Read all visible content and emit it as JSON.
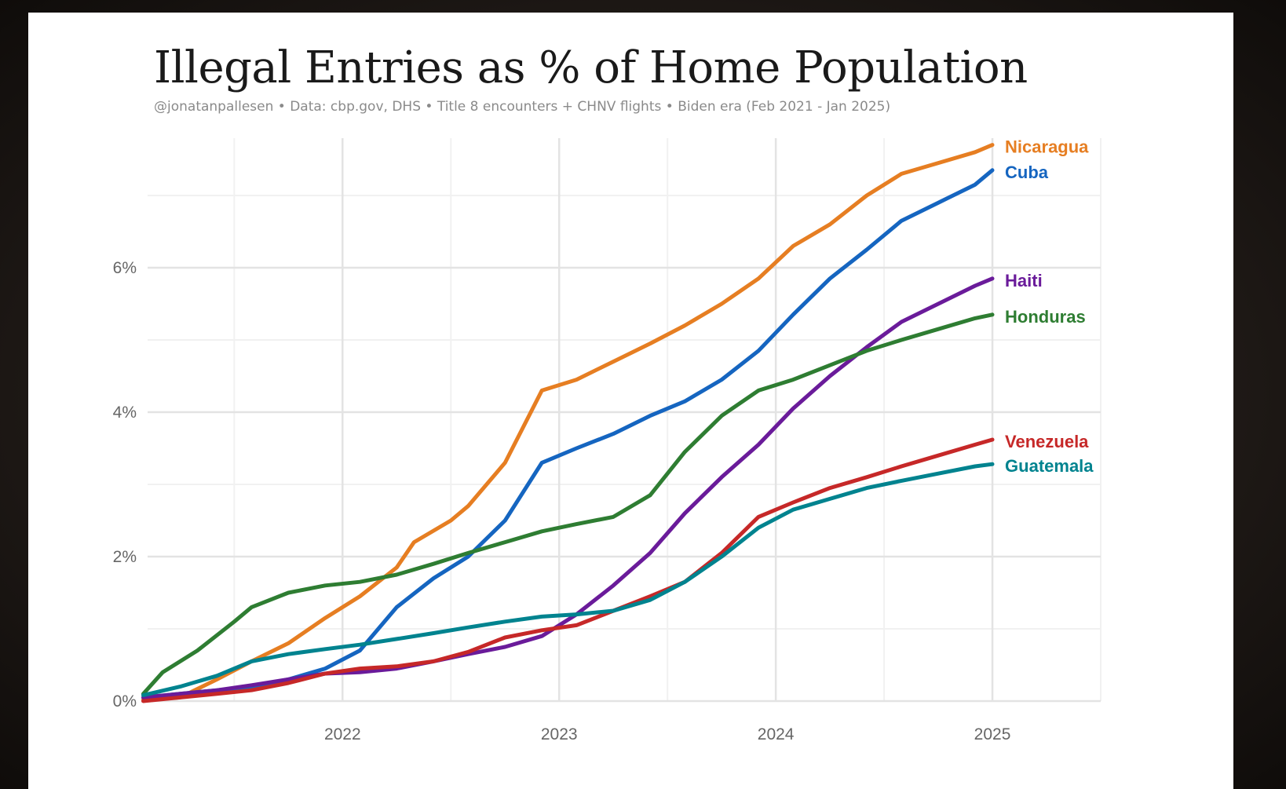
{
  "title": "Illegal Entries as % of Home Population",
  "subtitle": "@jonatanpallesen  •  Data: cbp.gov, DHS  •  Title 8 encounters + CHNV flights  •  Biden era (Feb 2021 - Jan 2025)",
  "chart_data": {
    "type": "line",
    "title": "Illegal Entries as % of Home Population",
    "xlabel": "",
    "ylabel": "",
    "xlim": [
      2021.1,
      2025.5
    ],
    "ylim": [
      0,
      7.8
    ],
    "x_ticks": [
      2022,
      2023,
      2024,
      2025
    ],
    "x_tick_labels": [
      "2022",
      "2023",
      "2024",
      "2025"
    ],
    "y_ticks": [
      0,
      2,
      4,
      6
    ],
    "y_tick_labels": [
      "0%",
      "2%",
      "4%",
      "6%"
    ],
    "grid": true,
    "legend": "direct labels at line ends (right)",
    "series": [
      {
        "name": "Nicaragua",
        "color": "#E67E22",
        "points": [
          [
            2021.08,
            0.02
          ],
          [
            2021.25,
            0.05
          ],
          [
            2021.42,
            0.3
          ],
          [
            2021.58,
            0.55
          ],
          [
            2021.75,
            0.8
          ],
          [
            2021.92,
            1.15
          ],
          [
            2022.08,
            1.45
          ],
          [
            2022.25,
            1.85
          ],
          [
            2022.33,
            2.2
          ],
          [
            2022.5,
            2.5
          ],
          [
            2022.58,
            2.7
          ],
          [
            2022.75,
            3.3
          ],
          [
            2022.92,
            4.3
          ],
          [
            2023.08,
            4.45
          ],
          [
            2023.25,
            4.7
          ],
          [
            2023.42,
            4.95
          ],
          [
            2023.58,
            5.2
          ],
          [
            2023.75,
            5.5
          ],
          [
            2023.92,
            5.85
          ],
          [
            2024.08,
            6.3
          ],
          [
            2024.25,
            6.6
          ],
          [
            2024.42,
            7.0
          ],
          [
            2024.58,
            7.3
          ],
          [
            2024.75,
            7.45
          ],
          [
            2024.92,
            7.6
          ],
          [
            2025.0,
            7.7
          ]
        ]
      },
      {
        "name": "Cuba",
        "color": "#1565C0",
        "points": [
          [
            2021.08,
            0.05
          ],
          [
            2021.25,
            0.1
          ],
          [
            2021.42,
            0.15
          ],
          [
            2021.58,
            0.2
          ],
          [
            2021.75,
            0.3
          ],
          [
            2021.92,
            0.45
          ],
          [
            2022.08,
            0.7
          ],
          [
            2022.25,
            1.3
          ],
          [
            2022.42,
            1.7
          ],
          [
            2022.58,
            2.0
          ],
          [
            2022.75,
            2.5
          ],
          [
            2022.92,
            3.3
          ],
          [
            2023.08,
            3.5
          ],
          [
            2023.25,
            3.7
          ],
          [
            2023.42,
            3.95
          ],
          [
            2023.58,
            4.15
          ],
          [
            2023.75,
            4.45
          ],
          [
            2023.92,
            4.85
          ],
          [
            2024.08,
            5.35
          ],
          [
            2024.25,
            5.85
          ],
          [
            2024.42,
            6.25
          ],
          [
            2024.58,
            6.65
          ],
          [
            2024.75,
            6.9
          ],
          [
            2024.92,
            7.15
          ],
          [
            2025.0,
            7.35
          ]
        ]
      },
      {
        "name": "Haiti",
        "color": "#6A1B9A",
        "points": [
          [
            2021.08,
            0.05
          ],
          [
            2021.25,
            0.1
          ],
          [
            2021.42,
            0.15
          ],
          [
            2021.58,
            0.22
          ],
          [
            2021.75,
            0.3
          ],
          [
            2021.92,
            0.38
          ],
          [
            2022.08,
            0.4
          ],
          [
            2022.25,
            0.45
          ],
          [
            2022.42,
            0.55
          ],
          [
            2022.58,
            0.65
          ],
          [
            2022.75,
            0.75
          ],
          [
            2022.92,
            0.9
          ],
          [
            2023.08,
            1.2
          ],
          [
            2023.25,
            1.6
          ],
          [
            2023.42,
            2.05
          ],
          [
            2023.58,
            2.6
          ],
          [
            2023.75,
            3.1
          ],
          [
            2023.92,
            3.55
          ],
          [
            2024.08,
            4.05
          ],
          [
            2024.25,
            4.5
          ],
          [
            2024.42,
            4.9
          ],
          [
            2024.58,
            5.25
          ],
          [
            2024.75,
            5.5
          ],
          [
            2024.92,
            5.75
          ],
          [
            2025.0,
            5.85
          ]
        ]
      },
      {
        "name": "Honduras",
        "color": "#2E7D32",
        "points": [
          [
            2021.08,
            0.1
          ],
          [
            2021.17,
            0.4
          ],
          [
            2021.33,
            0.7
          ],
          [
            2021.5,
            1.1
          ],
          [
            2021.58,
            1.3
          ],
          [
            2021.75,
            1.5
          ],
          [
            2021.92,
            1.6
          ],
          [
            2022.08,
            1.65
          ],
          [
            2022.25,
            1.75
          ],
          [
            2022.42,
            1.9
          ],
          [
            2022.58,
            2.05
          ],
          [
            2022.75,
            2.2
          ],
          [
            2022.92,
            2.35
          ],
          [
            2023.08,
            2.45
          ],
          [
            2023.25,
            2.55
          ],
          [
            2023.42,
            2.85
          ],
          [
            2023.58,
            3.45
          ],
          [
            2023.75,
            3.95
          ],
          [
            2023.92,
            4.3
          ],
          [
            2024.08,
            4.45
          ],
          [
            2024.25,
            4.65
          ],
          [
            2024.42,
            4.85
          ],
          [
            2024.58,
            5.0
          ],
          [
            2024.75,
            5.15
          ],
          [
            2024.92,
            5.3
          ],
          [
            2025.0,
            5.35
          ]
        ]
      },
      {
        "name": "Venezuela",
        "color": "#C62828",
        "points": [
          [
            2021.08,
            0.0
          ],
          [
            2021.25,
            0.05
          ],
          [
            2021.42,
            0.1
          ],
          [
            2021.58,
            0.15
          ],
          [
            2021.75,
            0.25
          ],
          [
            2021.92,
            0.38
          ],
          [
            2022.08,
            0.45
          ],
          [
            2022.25,
            0.48
          ],
          [
            2022.42,
            0.55
          ],
          [
            2022.58,
            0.68
          ],
          [
            2022.75,
            0.88
          ],
          [
            2022.92,
            0.98
          ],
          [
            2023.08,
            1.05
          ],
          [
            2023.25,
            1.25
          ],
          [
            2023.42,
            1.45
          ],
          [
            2023.58,
            1.65
          ],
          [
            2023.75,
            2.05
          ],
          [
            2023.92,
            2.55
          ],
          [
            2024.08,
            2.75
          ],
          [
            2024.25,
            2.95
          ],
          [
            2024.42,
            3.1
          ],
          [
            2024.58,
            3.25
          ],
          [
            2024.75,
            3.4
          ],
          [
            2024.92,
            3.55
          ],
          [
            2025.0,
            3.62
          ]
        ]
      },
      {
        "name": "Guatemala",
        "color": "#00838F",
        "points": [
          [
            2021.08,
            0.08
          ],
          [
            2021.25,
            0.2
          ],
          [
            2021.42,
            0.35
          ],
          [
            2021.58,
            0.55
          ],
          [
            2021.75,
            0.65
          ],
          [
            2021.92,
            0.72
          ],
          [
            2022.08,
            0.78
          ],
          [
            2022.25,
            0.86
          ],
          [
            2022.42,
            0.94
          ],
          [
            2022.58,
            1.02
          ],
          [
            2022.75,
            1.1
          ],
          [
            2022.92,
            1.17
          ],
          [
            2023.08,
            1.2
          ],
          [
            2023.25,
            1.25
          ],
          [
            2023.42,
            1.4
          ],
          [
            2023.58,
            1.65
          ],
          [
            2023.75,
            2.0
          ],
          [
            2023.92,
            2.4
          ],
          [
            2024.08,
            2.65
          ],
          [
            2024.25,
            2.8
          ],
          [
            2024.42,
            2.95
          ],
          [
            2024.58,
            3.05
          ],
          [
            2024.75,
            3.15
          ],
          [
            2024.92,
            3.25
          ],
          [
            2025.0,
            3.28
          ]
        ]
      }
    ]
  }
}
